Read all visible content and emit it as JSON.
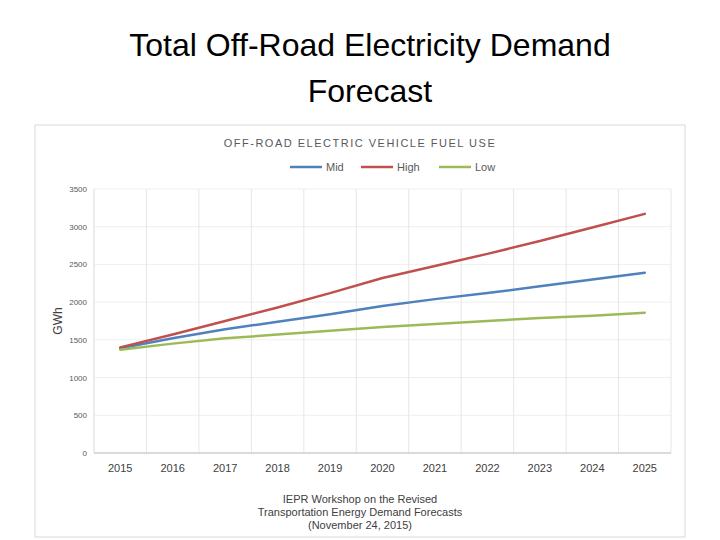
{
  "slide_title": [
    "Total Off-Road Electricity Demand",
    "Forecast"
  ],
  "chart_data": {
    "type": "line",
    "title": "OFF-ROAD ELECTRIC VEHICLE FUEL USE",
    "y_label": "GWh",
    "categories": [
      "2015",
      "2016",
      "2017",
      "2018",
      "2019",
      "2020",
      "2021",
      "2022",
      "2023",
      "2024",
      "2025"
    ],
    "series": [
      {
        "name": "Mid",
        "color": "#4f81bd",
        "values": [
          1390,
          1520,
          1640,
          1740,
          1840,
          1950,
          2040,
          2120,
          2210,
          2300,
          2390
        ]
      },
      {
        "name": "High",
        "color": "#c0504d",
        "values": [
          1400,
          1570,
          1750,
          1930,
          2120,
          2320,
          2480,
          2640,
          2810,
          2990,
          3170
        ]
      },
      {
        "name": "Low",
        "color": "#9bbb59",
        "values": [
          1370,
          1450,
          1520,
          1570,
          1620,
          1670,
          1710,
          1750,
          1790,
          1820,
          1860
        ]
      }
    ],
    "ylim": [
      0,
      3500
    ],
    "yticks": [
      0,
      500,
      1000,
      1500,
      2000,
      2500,
      3000,
      3500
    ],
    "grid": true,
    "legend": "top"
  },
  "footnote": [
    "IEPR Workshop on the Revised",
    "Transportation Energy Demand Forecasts",
    "(November 24, 2015)"
  ]
}
